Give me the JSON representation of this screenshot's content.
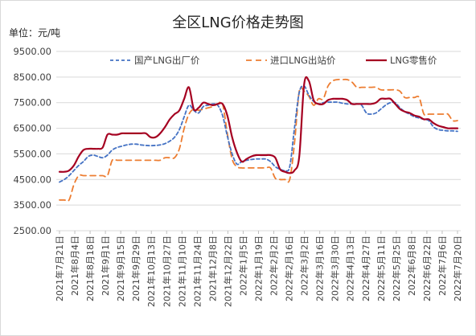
{
  "chart_data": {
    "type": "line",
    "title": "全区LNG价格走势图",
    "unit_label": "单位：元/吨",
    "ylim": [
      2500,
      9500
    ],
    "yticks": [
      "9500.00",
      "8500.00",
      "7500.00",
      "6500.00",
      "5500.00",
      "4500.00",
      "3500.00",
      "2500.00"
    ],
    "ytick_values": [
      9500,
      8500,
      7500,
      6500,
      5500,
      4500,
      3500,
      2500
    ],
    "xticks": [
      "2021年7月21日",
      "2021年8月4日",
      "2021年8月18日",
      "2021年9月1日",
      "2021年9月15日",
      "2021年9月29日",
      "2021年10月13日",
      "2021年10月27日",
      "2021年11月10日",
      "2021年11月24日",
      "2021年12月8日",
      "2021年12月22日",
      "2022年1月5日",
      "2022年1月19日",
      "2022年2月2日",
      "2022年2月16日",
      "2022年3月2日",
      "2022年3月16日",
      "2022年3月30日",
      "2022年4月13日",
      "2022年4月27日",
      "2022年5月11日",
      "2022年5月25日",
      "2022年6月8日",
      "2022年6月22日",
      "2022年7月6日",
      "2022年7月20日"
    ],
    "legend_position": "top",
    "grid": true,
    "series": [
      {
        "name": "国产LNG出厂价",
        "color": "#4472C4",
        "style": "dashed",
        "values": [
          4400,
          4500,
          4650,
          4850,
          5050,
          5200,
          5400,
          5450,
          5400,
          5350,
          5450,
          5650,
          5750,
          5800,
          5850,
          5880,
          5880,
          5850,
          5830,
          5820,
          5830,
          5850,
          5900,
          6000,
          6150,
          6450,
          6950,
          7400,
          7200,
          7100,
          7350,
          7400,
          7450,
          7400,
          7000,
          6200,
          5500,
          5100,
          5200,
          5250,
          5280,
          5300,
          5300,
          5300,
          5200,
          5000,
          4900,
          4850,
          5000,
          6500,
          7900,
          8150,
          7800,
          7550,
          7450,
          7500,
          7520,
          7520,
          7520,
          7480,
          7450,
          7450,
          7450,
          7400,
          7100,
          7050,
          7100,
          7250,
          7400,
          7500,
          7500,
          7300,
          7150,
          7050,
          6950,
          6900,
          6850,
          6800,
          6550,
          6450,
          6420,
          6400,
          6400,
          6380
        ]
      },
      {
        "name": "进口LNG出站价",
        "color": "#ED7D31",
        "style": "dashed",
        "values": [
          3700,
          3700,
          3700,
          4300,
          4650,
          4650,
          4650,
          4650,
          4650,
          4650,
          4650,
          5250,
          5250,
          5250,
          5250,
          5250,
          5250,
          5250,
          5250,
          5250,
          5250,
          5250,
          5350,
          5350,
          5350,
          5700,
          6500,
          7050,
          7250,
          7200,
          7250,
          7300,
          7350,
          7450,
          7450,
          6300,
          5300,
          5000,
          4950,
          4950,
          4950,
          4950,
          4950,
          4950,
          4950,
          4550,
          4500,
          4500,
          4500,
          5900,
          7950,
          7950,
          7750,
          7400,
          7650,
          7650,
          8150,
          8350,
          8400,
          8400,
          8400,
          8300,
          8100,
          8100,
          8100,
          8100,
          8100,
          8000,
          8000,
          8000,
          8000,
          7950,
          7700,
          7700,
          7700,
          7700,
          7050,
          7050,
          7050,
          7050,
          7050,
          7050,
          6800,
          6800
        ]
      },
      {
        "name": "LNG零售价",
        "color": "#A50021",
        "style": "solid",
        "values": [
          4800,
          4800,
          4850,
          5050,
          5400,
          5650,
          5700,
          5700,
          5700,
          5750,
          6250,
          6250,
          6250,
          6300,
          6300,
          6300,
          6300,
          6300,
          6300,
          6150,
          6150,
          6300,
          6550,
          6850,
          7050,
          7200,
          7650,
          8100,
          7250,
          7300,
          7500,
          7450,
          7400,
          7450,
          7450,
          7000,
          6150,
          5550,
          5200,
          5300,
          5400,
          5450,
          5450,
          5450,
          5450,
          5350,
          4900,
          4800,
          4750,
          4850,
          5400,
          8200,
          8350,
          7600,
          7450,
          7450,
          7600,
          7650,
          7650,
          7650,
          7600,
          7450,
          7450,
          7450,
          7450,
          7450,
          7500,
          7650,
          7650,
          7650,
          7450,
          7250,
          7150,
          7100,
          7000,
          6950,
          6850,
          6850,
          6700,
          6600,
          6550,
          6500,
          6500,
          6500
        ]
      }
    ]
  }
}
